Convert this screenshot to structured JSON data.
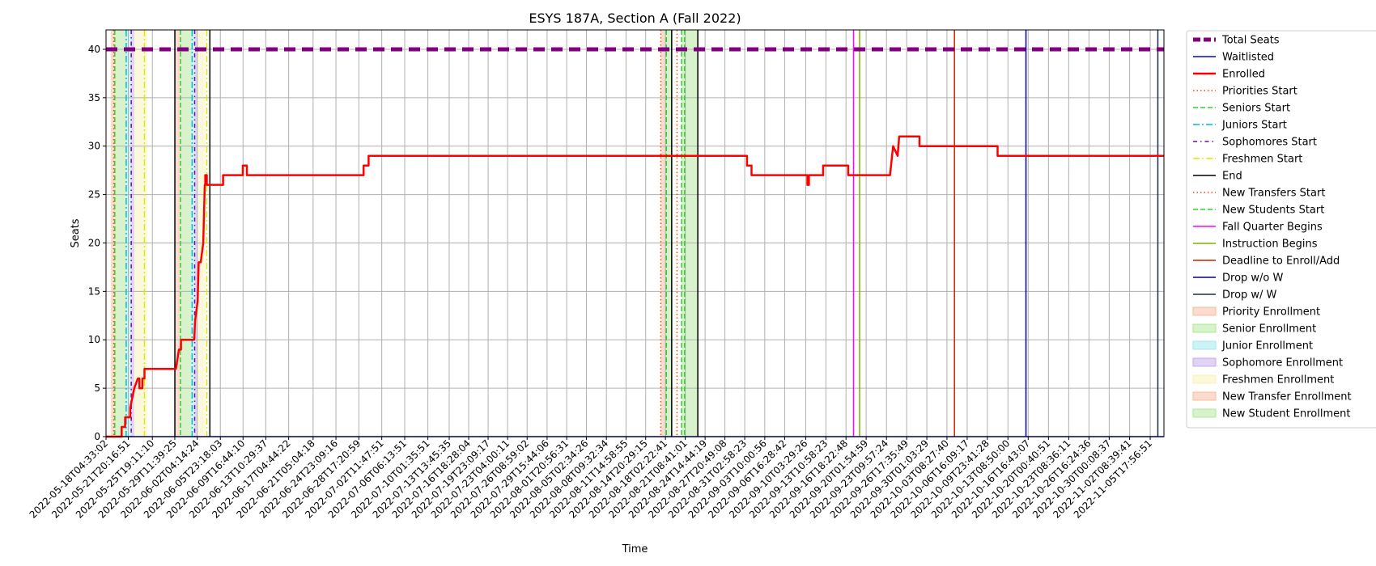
{
  "chart_data": {
    "type": "line",
    "title": "ESYS 187A, Section A (Fall 2022)",
    "xlabel": "Time",
    "ylabel": "Seats",
    "xlim": [
      "2022-05-18T04:33:02",
      "2022-11-08T00:00:00"
    ],
    "ylim": [
      0,
      42
    ],
    "yticks": [
      0,
      5,
      10,
      15,
      20,
      25,
      30,
      35,
      40
    ],
    "xticks": [
      "2022-05-18T04:33:02",
      "2022-05-21T20:16:51",
      "2022-05-25T19:11:10",
      "2022-05-29T11:39:25",
      "2022-06-02T04:14:24",
      "2022-06-05T23:18:03",
      "2022-06-09T16:44:10",
      "2022-06-13T10:29:37",
      "2022-06-17T04:44:22",
      "2022-06-21T05:04:18",
      "2022-06-24T23:09:16",
      "2022-06-28T17:20:59",
      "2022-07-02T11:47:51",
      "2022-07-06T06:13:51",
      "2022-07-10T01:35:51",
      "2022-07-13T13:45:35",
      "2022-07-16T18:28:04",
      "2022-07-19T23:09:17",
      "2022-07-23T04:00:11",
      "2022-07-26T08:59:02",
      "2022-07-29T15:44:06",
      "2022-08-01T20:56:31",
      "2022-08-05T02:34:26",
      "2022-08-08T09:32:34",
      "2022-08-11T14:58:55",
      "2022-08-14T20:29:15",
      "2022-08-18T02:22:41",
      "2022-08-21T08:41:01",
      "2022-08-24T14:44:19",
      "2022-08-27T20:49:08",
      "2022-08-31T02:58:23",
      "2022-09-03T10:00:56",
      "2022-09-06T16:28:42",
      "2022-09-10T03:29:26",
      "2022-09-13T10:58:23",
      "2022-09-16T18:22:48",
      "2022-09-20T01:54:59",
      "2022-09-23T09:57:24",
      "2022-09-26T17:35:49",
      "2022-09-30T01:03:29",
      "2022-10-03T08:27:40",
      "2022-10-06T16:09:17",
      "2022-10-09T23:41:28",
      "2022-10-13T08:50:00",
      "2022-10-16T16:43:07",
      "2022-10-20T00:40:51",
      "2022-10-23T08:36:11",
      "2022-10-26T16:24:36",
      "2022-10-30T00:08:37",
      "2022-11-02T08:39:41",
      "2022-11-05T17:56:51"
    ],
    "grid": true,
    "legend_placement": "outside-right",
    "series": [
      {
        "name": "Total Seats",
        "color": "#800080",
        "style": "dashed-thick",
        "x": [
          "2022-05-18T04:33:02",
          "2022-11-08T00:00:00"
        ],
        "y": [
          40,
          40
        ]
      },
      {
        "name": "Waitlisted",
        "color": "#0000ff",
        "style": "solid",
        "x": [
          "2022-05-18T04:33:02",
          "2022-11-08T00:00:00"
        ],
        "y": [
          0,
          0
        ]
      },
      {
        "name": "Enrolled",
        "color": "#ff0000",
        "style": "solid-thick",
        "x": [
          "2022-05-18T04:33:02",
          "2022-05-20T18:00:00",
          "2022-05-20T18:00:00",
          "2022-05-21T08:00:00",
          "2022-05-21T08:00:00",
          "2022-05-22T04:00:00",
          "2022-05-22T04:00:00",
          "2022-05-22T20:00:00",
          "2022-05-23T10:00:00",
          "2022-05-23T16:00:00",
          "2022-05-23T16:00:00",
          "2022-05-24T04:00:00",
          "2022-05-24T04:00:00",
          "2022-05-24T12:00:00",
          "2022-05-24T12:00:00",
          "2022-05-29T16:00:00",
          "2022-05-30T04:00:00",
          "2022-05-30T12:00:00",
          "2022-05-30T12:00:00",
          "2022-06-01T16:00:00",
          "2022-06-01T20:00:00",
          "2022-06-02T06:00:00",
          "2022-06-02T10:00:00",
          "2022-06-02T18:00:00",
          "2022-06-03T04:00:00",
          "2022-06-03T10:00:00",
          "2022-06-03T12:00:00",
          "2022-06-03T12:00:00",
          "2022-06-03T18:00:00",
          "2022-06-03T18:00:00",
          "2022-06-06T10:00:00",
          "2022-06-06T10:00:00",
          "2022-06-09T16:00:00",
          "2022-06-09T16:00:00",
          "2022-06-10T08:00:00",
          "2022-06-10T08:00:00",
          "2022-06-29T12:00:00",
          "2022-06-29T12:00:00",
          "2022-06-30T08:00:00",
          "2022-06-30T08:00:00",
          "2022-08-31T12:00:00",
          "2022-08-31T12:00:00",
          "2022-09-01T06:00:00",
          "2022-09-01T06:00:00",
          "2022-09-10T10:00:00",
          "2022-09-10T10:00:00",
          "2022-09-10T16:00:00",
          "2022-09-10T16:00:00",
          "2022-09-13T00:00:00",
          "2022-09-13T00:00:00",
          "2022-09-17T03:00:00",
          "2022-09-17T03:00:00",
          "2022-09-24T00:00:00",
          "2022-09-24T12:00:00",
          "2022-09-24T12:00:00",
          "2022-09-25T06:00:00",
          "2022-09-25T06:00:00",
          "2022-09-25T12:00:00",
          "2022-09-25T12:00:00",
          "2022-09-28T20:00:00",
          "2022-09-28T20:00:00",
          "2022-10-11T16:00:00",
          "2022-10-11T16:00:00",
          "2022-11-08T00:00:00"
        ],
        "y": [
          0,
          0,
          1,
          1,
          2,
          2,
          3,
          5,
          6,
          6,
          5,
          5,
          6,
          6,
          7,
          7,
          9,
          9,
          10,
          10,
          12,
          14,
          18,
          18,
          20,
          26,
          26,
          27,
          27,
          26,
          26,
          27,
          27,
          28,
          28,
          27,
          27,
          28,
          28,
          29,
          29,
          28,
          28,
          27,
          27,
          26,
          26,
          27,
          27,
          28,
          28,
          27,
          27,
          30,
          30,
          29,
          29,
          31,
          31,
          31,
          30,
          30,
          29,
          29
        ]
      }
    ],
    "event_lines": [
      {
        "name": "Priorities Start",
        "color": "#ff4500",
        "style": "dotted",
        "x": [
          "2022-05-19T11:00:00",
          "2022-08-17T08:00:00"
        ]
      },
      {
        "name": "Seniors Start",
        "color": "#32cd32",
        "style": "dashed",
        "x": [
          "2022-05-19T15:00:00",
          "2022-05-30T10:00:00",
          "2022-08-18T06:00:00",
          "2022-08-21T06:00:00"
        ]
      },
      {
        "name": "Juniors Start",
        "color": "#00bcd4",
        "style": "dashdot",
        "x": [
          "2022-05-21T12:00:00",
          "2022-06-01T08:00:00"
        ]
      },
      {
        "name": "Sophomores Start",
        "color": "#6a0dad",
        "style": "dashdot-dense",
        "x": [
          "2022-05-22T08:00:00",
          "2022-06-01T18:00:00"
        ]
      },
      {
        "name": "Freshmen Start",
        "color": "#e6e600",
        "style": "dashdot",
        "x": [
          "2022-05-24T12:00:00",
          "2022-06-03T18:00:00"
        ]
      },
      {
        "name": "End",
        "color": "#000000",
        "style": "solid",
        "x": [
          "2022-05-29T12:00:00",
          "2022-06-04T06:00:00",
          "2022-08-19T03:00:00",
          "2022-08-23T10:00:00"
        ]
      },
      {
        "name": "New Transfers Start",
        "color": "#ff4500",
        "style": "dotted",
        "x": [
          "2022-08-20T00:00:00"
        ]
      },
      {
        "name": "New Students Start",
        "color": "#32cd32",
        "style": "dashed",
        "x": [
          "2022-08-20T18:00:00"
        ]
      },
      {
        "name": "Fall Quarter Begins",
        "color": "#ff00ff",
        "style": "solid",
        "x": [
          "2022-09-18T00:00:00"
        ]
      },
      {
        "name": "Instruction Begins",
        "color": "#7cb300",
        "style": "solid",
        "x": [
          "2022-09-19T00:00:00"
        ]
      },
      {
        "name": "Deadline to Enroll/Add",
        "color": "#cc2200",
        "style": "solid",
        "x": [
          "2022-10-04T14:00:00"
        ]
      },
      {
        "name": "Drop w/o W",
        "color": "#00008b",
        "style": "solid",
        "x": [
          "2022-10-16T08:00:00"
        ]
      },
      {
        "name": "Drop w/ W",
        "color": "#1a2a5a",
        "style": "solid",
        "x": [
          "2022-11-07T00:00:00"
        ]
      }
    ],
    "spans": [
      {
        "name": "Priority Enrollment",
        "color": "#f4a582",
        "x": [
          [
            "2022-05-18T23:00:00",
            "2022-05-19T15:00:00"
          ],
          [
            "2022-05-29T15:00:00",
            "2022-05-30T10:00:00"
          ]
        ]
      },
      {
        "name": "Senior Enrollment",
        "color": "#98e07a",
        "x": [
          [
            "2022-05-19T15:00:00",
            "2022-05-21T12:00:00"
          ],
          [
            "2022-05-30T10:00:00",
            "2022-06-01T08:00:00"
          ]
        ]
      },
      {
        "name": "Junior Enrollment",
        "color": "#7fe3e8",
        "x": [
          [
            "2022-05-21T12:00:00",
            "2022-05-22T08:00:00"
          ],
          [
            "2022-06-01T08:00:00",
            "2022-06-01T18:00:00"
          ]
        ]
      },
      {
        "name": "Sophomore Enrollment",
        "color": "#b390e8",
        "x": [
          [
            "2022-05-22T08:00:00",
            "2022-05-22T20:00:00"
          ],
          [
            "2022-06-01T18:00:00",
            "2022-06-02T04:00:00"
          ]
        ]
      },
      {
        "name": "Freshmen Enrollment",
        "color": "#f5f0a0",
        "x": [
          [
            "2022-05-22T20:00:00",
            "2022-05-25T00:00:00"
          ],
          [
            "2022-06-02T04:00:00",
            "2022-06-03T12:00:00"
          ]
        ]
      },
      {
        "name": "New Transfer Enrollment",
        "color": "#f4a582",
        "x": [
          [
            "2022-08-17T08:00:00",
            "2022-08-18T03:00:00"
          ]
        ]
      },
      {
        "name": "New Student Enrollment",
        "color": "#98e07a",
        "x": [
          [
            "2022-08-18T03:00:00",
            "2022-08-19T03:00:00"
          ],
          [
            "2022-08-20T18:00:00",
            "2022-08-23T10:00:00"
          ]
        ]
      }
    ],
    "legend": [
      "Total Seats",
      "Waitlisted",
      "Enrolled",
      "Priorities Start",
      "Seniors Start",
      "Juniors Start",
      "Sophomores Start",
      "Freshmen Start",
      "End",
      "New Transfers Start",
      "New Students Start",
      "Fall Quarter Begins",
      "Instruction Begins",
      "Deadline to Enroll/Add",
      "Drop w/o W",
      "Drop w/ W",
      "Priority Enrollment",
      "Senior Enrollment",
      "Junior Enrollment",
      "Sophomore Enrollment",
      "Freshmen Enrollment",
      "New Transfer Enrollment",
      "New Student Enrollment"
    ]
  }
}
